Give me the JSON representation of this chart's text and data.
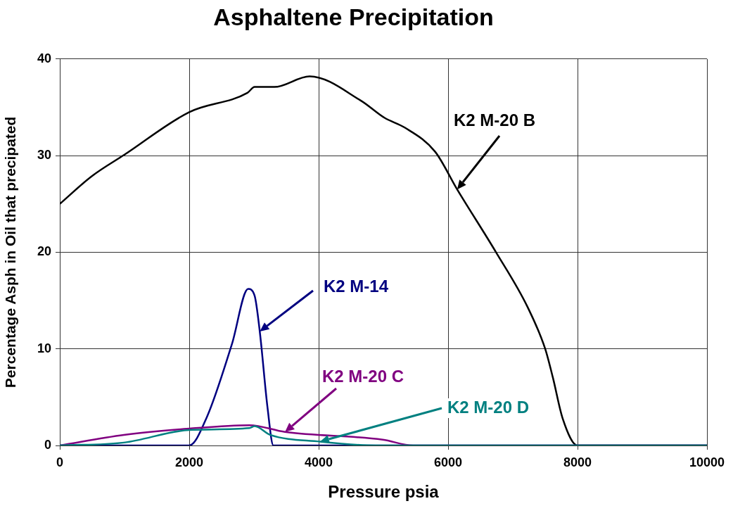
{
  "chart_data": {
    "type": "line",
    "title": "Asphaltene Precipitation",
    "xlabel": "Pressure psia",
    "ylabel": "Percentage Asph in Oil that precipated",
    "xlim": [
      0,
      10000
    ],
    "xticks": [
      0,
      2000,
      4000,
      6000,
      8000,
      10000
    ],
    "ylim": [
      0,
      40
    ],
    "yticks": [
      0,
      10,
      20,
      30,
      40
    ],
    "grid": true,
    "legend": false,
    "marker": "none",
    "line_style": "solid",
    "series": [
      {
        "name": "K2 M-20 B",
        "color": "#000000",
        "x": [
          0,
          500,
          1000,
          2000,
          2900,
          3010,
          3315,
          3860,
          4650,
          5020,
          5330,
          5800,
          6140,
          6740,
          7230,
          7500,
          7620,
          7770,
          8000,
          10000
        ],
        "values": [
          25,
          27.9,
          30.1,
          34.5,
          36.5,
          37.1,
          37.1,
          38.2,
          35.7,
          33.9,
          32.9,
          30.4,
          26.5,
          20.0,
          14.3,
          10.0,
          7.0,
          2.8,
          0,
          0
        ]
      },
      {
        "name": "K2 M-14",
        "color": "#000080",
        "x": [
          0,
          2000,
          2270,
          2660,
          2910,
          3010,
          3090,
          3210,
          3300,
          10000
        ],
        "values": [
          0,
          0,
          2.9,
          10.5,
          16.2,
          15.5,
          11.8,
          3.9,
          0,
          0
        ]
      },
      {
        "name": "K2 M-20 C",
        "color": "#800080",
        "x": [
          0,
          990,
          2000,
          2930,
          3480,
          4990,
          5460,
          10000
        ],
        "values": [
          0,
          1.1,
          1.75,
          2.1,
          1.4,
          0.6,
          0,
          0
        ]
      },
      {
        "name": "K2 M-20 D",
        "color": "#008080",
        "x": [
          0,
          990,
          2000,
          2930,
          3010,
          3250,
          4020,
          4880,
          10000
        ],
        "values": [
          0,
          0.3,
          1.6,
          1.8,
          2.0,
          1.1,
          0.4,
          0,
          0
        ]
      }
    ]
  }
}
